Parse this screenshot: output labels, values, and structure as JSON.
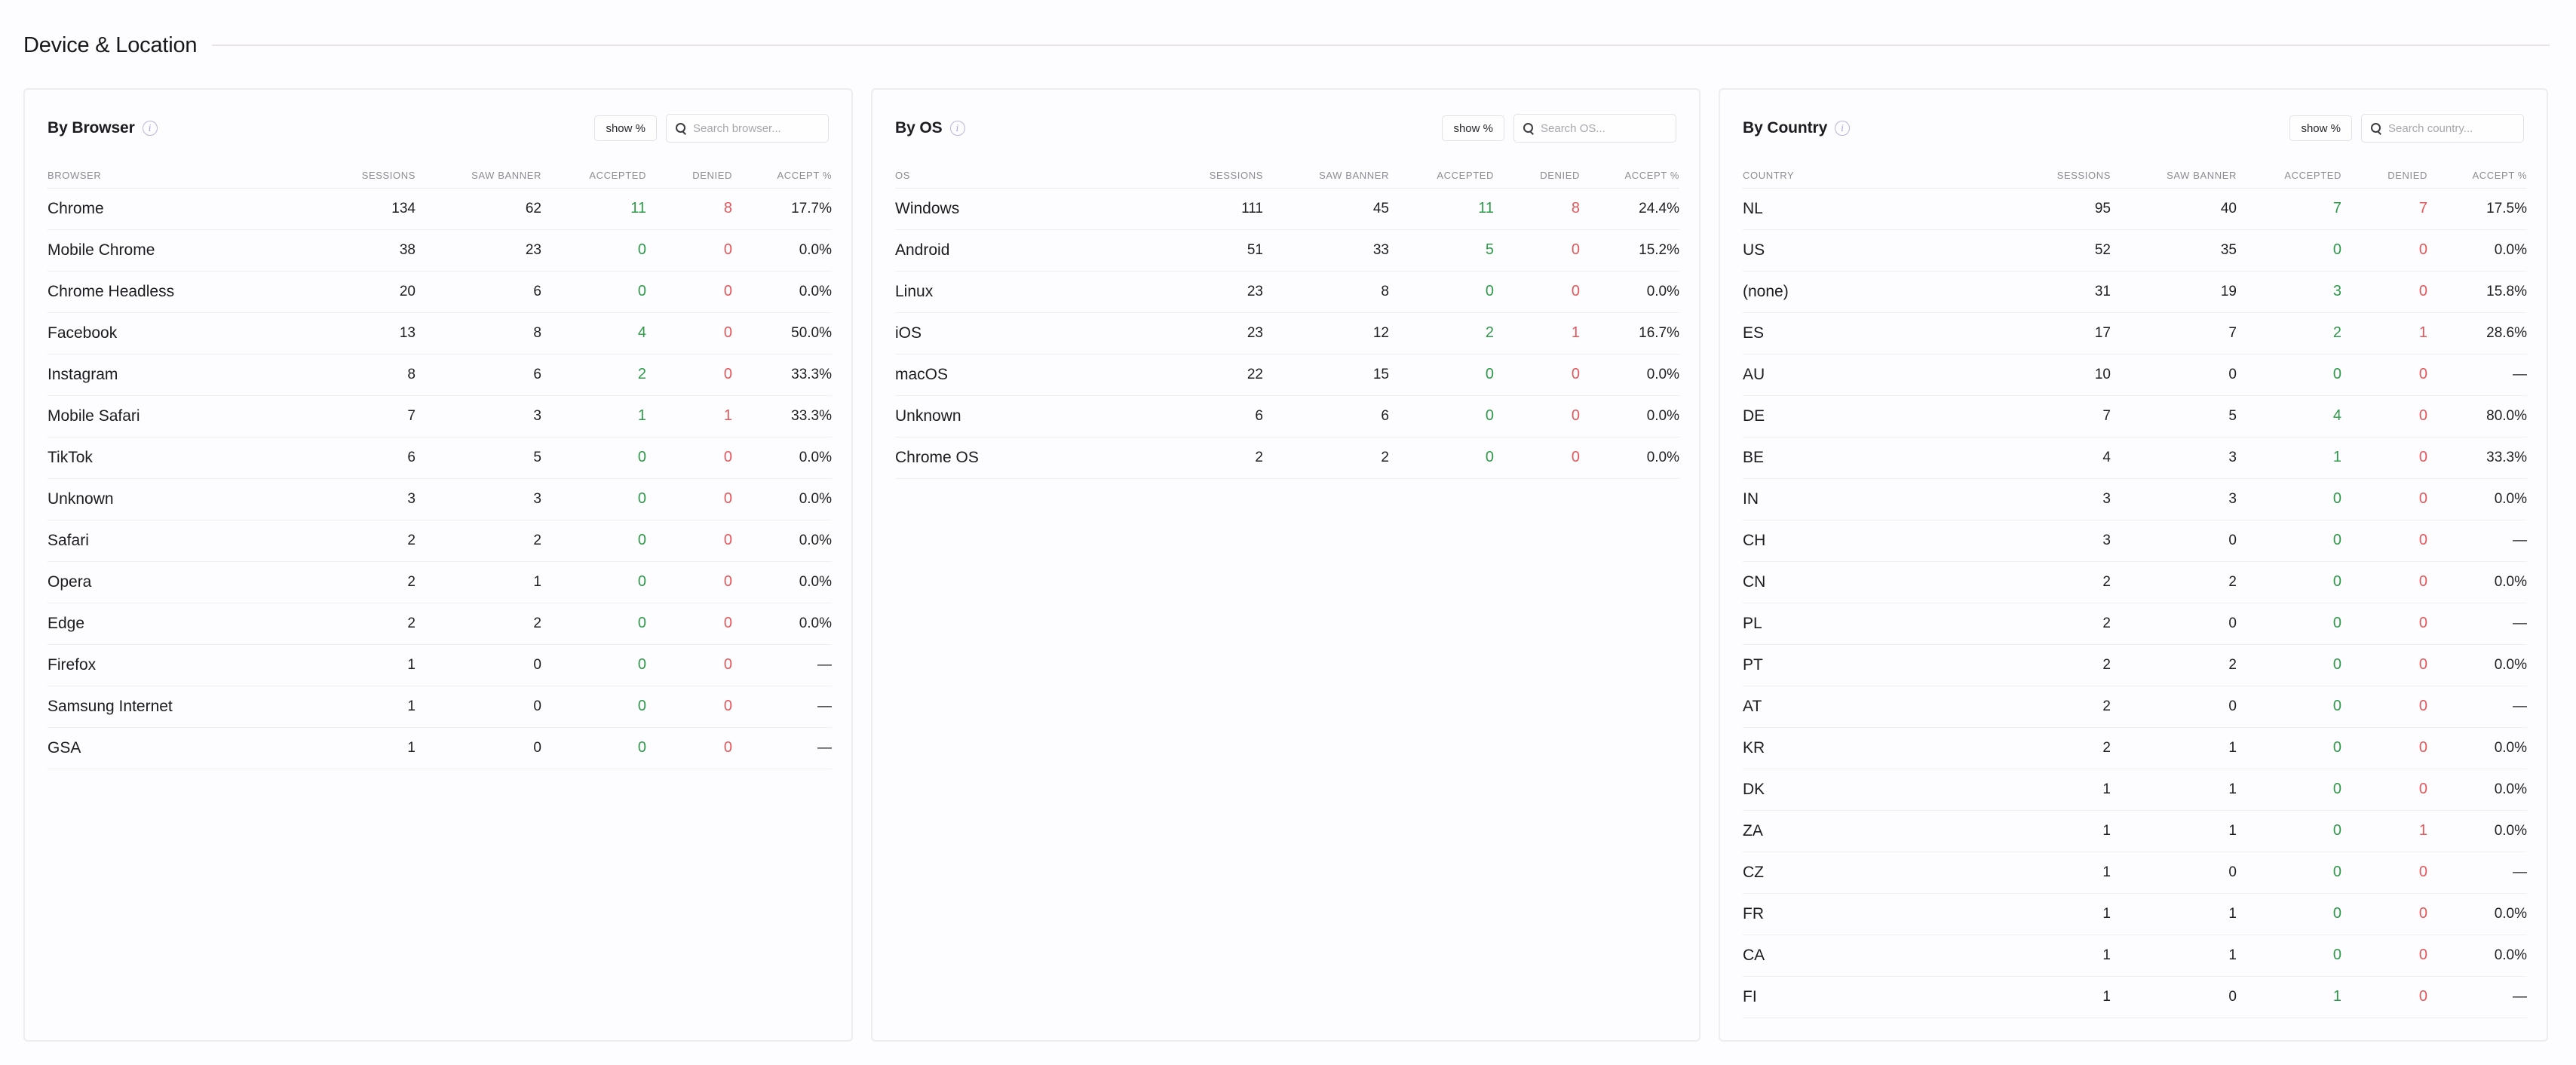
{
  "section": {
    "title": "Device & Location"
  },
  "columns": {
    "sessions": "SESSIONS",
    "saw_banner": "SAW BANNER",
    "accepted": "ACCEPTED",
    "denied": "DENIED",
    "accept_pct": "ACCEPT %"
  },
  "panels": [
    {
      "title": "By Browser",
      "show_pct_label": "show %",
      "search_placeholder": "Search browser...",
      "name_header": "BROWSER",
      "rows": [
        {
          "name": "Chrome",
          "sessions": "134",
          "saw": "62",
          "accepted": "11",
          "denied": "8",
          "pct": "17.7%"
        },
        {
          "name": "Mobile Chrome",
          "sessions": "38",
          "saw": "23",
          "accepted": "0",
          "denied": "0",
          "pct": "0.0%"
        },
        {
          "name": "Chrome Headless",
          "sessions": "20",
          "saw": "6",
          "accepted": "0",
          "denied": "0",
          "pct": "0.0%"
        },
        {
          "name": "Facebook",
          "sessions": "13",
          "saw": "8",
          "accepted": "4",
          "denied": "0",
          "pct": "50.0%"
        },
        {
          "name": "Instagram",
          "sessions": "8",
          "saw": "6",
          "accepted": "2",
          "denied": "0",
          "pct": "33.3%"
        },
        {
          "name": "Mobile Safari",
          "sessions": "7",
          "saw": "3",
          "accepted": "1",
          "denied": "1",
          "pct": "33.3%"
        },
        {
          "name": "TikTok",
          "sessions": "6",
          "saw": "5",
          "accepted": "0",
          "denied": "0",
          "pct": "0.0%"
        },
        {
          "name": "Unknown",
          "sessions": "3",
          "saw": "3",
          "accepted": "0",
          "denied": "0",
          "pct": "0.0%"
        },
        {
          "name": "Safari",
          "sessions": "2",
          "saw": "2",
          "accepted": "0",
          "denied": "0",
          "pct": "0.0%"
        },
        {
          "name": "Opera",
          "sessions": "2",
          "saw": "1",
          "accepted": "0",
          "denied": "0",
          "pct": "0.0%"
        },
        {
          "name": "Edge",
          "sessions": "2",
          "saw": "2",
          "accepted": "0",
          "denied": "0",
          "pct": "0.0%"
        },
        {
          "name": "Firefox",
          "sessions": "1",
          "saw": "0",
          "accepted": "0",
          "denied": "0",
          "pct": "—"
        },
        {
          "name": "Samsung Internet",
          "sessions": "1",
          "saw": "0",
          "accepted": "0",
          "denied": "0",
          "pct": "—"
        },
        {
          "name": "GSA",
          "sessions": "1",
          "saw": "0",
          "accepted": "0",
          "denied": "0",
          "pct": "—"
        }
      ]
    },
    {
      "title": "By OS",
      "show_pct_label": "show %",
      "search_placeholder": "Search OS...",
      "name_header": "OS",
      "rows": [
        {
          "name": "Windows",
          "sessions": "111",
          "saw": "45",
          "accepted": "11",
          "denied": "8",
          "pct": "24.4%"
        },
        {
          "name": "Android",
          "sessions": "51",
          "saw": "33",
          "accepted": "5",
          "denied": "0",
          "pct": "15.2%"
        },
        {
          "name": "Linux",
          "sessions": "23",
          "saw": "8",
          "accepted": "0",
          "denied": "0",
          "pct": "0.0%"
        },
        {
          "name": "iOS",
          "sessions": "23",
          "saw": "12",
          "accepted": "2",
          "denied": "1",
          "pct": "16.7%"
        },
        {
          "name": "macOS",
          "sessions": "22",
          "saw": "15",
          "accepted": "0",
          "denied": "0",
          "pct": "0.0%"
        },
        {
          "name": "Unknown",
          "sessions": "6",
          "saw": "6",
          "accepted": "0",
          "denied": "0",
          "pct": "0.0%"
        },
        {
          "name": "Chrome OS",
          "sessions": "2",
          "saw": "2",
          "accepted": "0",
          "denied": "0",
          "pct": "0.0%"
        }
      ]
    },
    {
      "title": "By Country",
      "show_pct_label": "show %",
      "search_placeholder": "Search country...",
      "name_header": "COUNTRY",
      "rows": [
        {
          "name": "NL",
          "sessions": "95",
          "saw": "40",
          "accepted": "7",
          "denied": "7",
          "pct": "17.5%"
        },
        {
          "name": "US",
          "sessions": "52",
          "saw": "35",
          "accepted": "0",
          "denied": "0",
          "pct": "0.0%"
        },
        {
          "name": "(none)",
          "sessions": "31",
          "saw": "19",
          "accepted": "3",
          "denied": "0",
          "pct": "15.8%"
        },
        {
          "name": "ES",
          "sessions": "17",
          "saw": "7",
          "accepted": "2",
          "denied": "1",
          "pct": "28.6%"
        },
        {
          "name": "AU",
          "sessions": "10",
          "saw": "0",
          "accepted": "0",
          "denied": "0",
          "pct": "—"
        },
        {
          "name": "DE",
          "sessions": "7",
          "saw": "5",
          "accepted": "4",
          "denied": "0",
          "pct": "80.0%"
        },
        {
          "name": "BE",
          "sessions": "4",
          "saw": "3",
          "accepted": "1",
          "denied": "0",
          "pct": "33.3%"
        },
        {
          "name": "IN",
          "sessions": "3",
          "saw": "3",
          "accepted": "0",
          "denied": "0",
          "pct": "0.0%"
        },
        {
          "name": "CH",
          "sessions": "3",
          "saw": "0",
          "accepted": "0",
          "denied": "0",
          "pct": "—"
        },
        {
          "name": "CN",
          "sessions": "2",
          "saw": "2",
          "accepted": "0",
          "denied": "0",
          "pct": "0.0%"
        },
        {
          "name": "PL",
          "sessions": "2",
          "saw": "0",
          "accepted": "0",
          "denied": "0",
          "pct": "—"
        },
        {
          "name": "PT",
          "sessions": "2",
          "saw": "2",
          "accepted": "0",
          "denied": "0",
          "pct": "0.0%"
        },
        {
          "name": "AT",
          "sessions": "2",
          "saw": "0",
          "accepted": "0",
          "denied": "0",
          "pct": "—"
        },
        {
          "name": "KR",
          "sessions": "2",
          "saw": "1",
          "accepted": "0",
          "denied": "0",
          "pct": "0.0%"
        },
        {
          "name": "DK",
          "sessions": "1",
          "saw": "1",
          "accepted": "0",
          "denied": "0",
          "pct": "0.0%"
        },
        {
          "name": "ZA",
          "sessions": "1",
          "saw": "1",
          "accepted": "0",
          "denied": "1",
          "pct": "0.0%"
        },
        {
          "name": "CZ",
          "sessions": "1",
          "saw": "0",
          "accepted": "0",
          "denied": "0",
          "pct": "—"
        },
        {
          "name": "FR",
          "sessions": "1",
          "saw": "1",
          "accepted": "0",
          "denied": "0",
          "pct": "0.0%"
        },
        {
          "name": "CA",
          "sessions": "1",
          "saw": "1",
          "accepted": "0",
          "denied": "0",
          "pct": "0.0%"
        },
        {
          "name": "FI",
          "sessions": "1",
          "saw": "0",
          "accepted": "1",
          "denied": "0",
          "pct": "—"
        }
      ]
    }
  ],
  "colors": {
    "accepted": "#2e9a4a",
    "denied": "#e4585c",
    "border": "#ececf1",
    "info_icon": "#b8b5d8"
  },
  "icons": {
    "info": "info-icon",
    "search": "search-icon"
  }
}
